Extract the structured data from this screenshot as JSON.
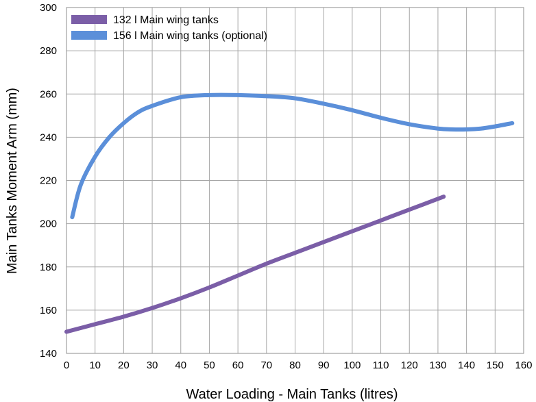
{
  "chart_data": {
    "type": "line",
    "title": "",
    "xlabel": "Water Loading - Main Tanks (litres)",
    "ylabel": "Main Tanks Moment Arm (mm)",
    "xlim": [
      0,
      160
    ],
    "ylim": [
      140,
      300
    ],
    "x_ticks": [
      "0",
      "10",
      "20",
      "30",
      "40",
      "50",
      "60",
      "70",
      "80",
      "90",
      "100",
      "110",
      "120",
      "130",
      "140",
      "150",
      "160"
    ],
    "y_ticks": [
      "140",
      "160",
      "180",
      "200",
      "220",
      "240",
      "260",
      "280",
      "300"
    ],
    "grid": true,
    "legend_position": "top-left",
    "series": [
      {
        "name": "132 l Main wing tanks",
        "color": "#7b5ea7",
        "x": [
          0,
          10,
          20,
          30,
          40,
          50,
          60,
          70,
          80,
          90,
          100,
          110,
          120,
          132
        ],
        "y": [
          150,
          153.5,
          157,
          161,
          165.5,
          170.5,
          176,
          181.5,
          186.5,
          191.5,
          196.5,
          201.5,
          206.5,
          212.5
        ]
      },
      {
        "name": "156 l Main wing tanks (optional)",
        "color": "#5b8fd9",
        "x": [
          2,
          5,
          10,
          15,
          20,
          25,
          30,
          40,
          50,
          60,
          70,
          80,
          90,
          100,
          110,
          120,
          130,
          135,
          140,
          145,
          150,
          156
        ],
        "y": [
          203,
          218,
          231,
          240,
          246.5,
          251.5,
          254.5,
          258.5,
          259.5,
          259.5,
          259,
          258,
          255.5,
          252.5,
          249,
          246,
          244,
          243.6,
          243.6,
          244,
          245,
          246.5
        ]
      }
    ]
  }
}
